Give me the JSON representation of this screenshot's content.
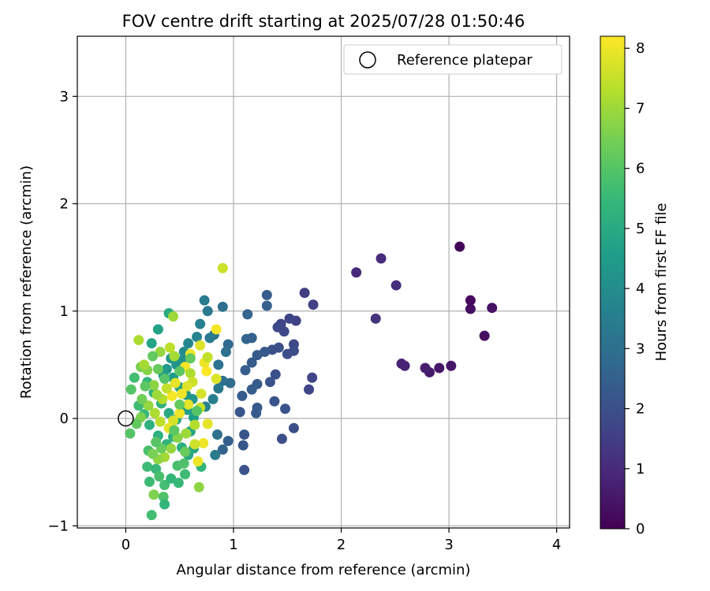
{
  "chart_data": {
    "type": "scatter",
    "title": "FOV centre drift starting at 2025/07/28 01:50:46",
    "xlabel": "Angular distance from reference (arcmin)",
    "ylabel": "Rotation from reference (arcmin)",
    "xlim": [
      -0.45,
      4.12
    ],
    "ylim": [
      -1.02,
      3.56
    ],
    "xticks": [
      0,
      1,
      2,
      3,
      4
    ],
    "yticks": [
      -1,
      0,
      1,
      2,
      3
    ],
    "xtick_labels": [
      "0",
      "1",
      "2",
      "3",
      "4"
    ],
    "ytick_labels": [
      "−1",
      "0",
      "1",
      "2",
      "3"
    ],
    "grid": true,
    "legend": {
      "position": "top-right",
      "entries": [
        {
          "label": "Reference platepar",
          "marker": "open-circle"
        }
      ]
    },
    "reference_point": {
      "x": 0,
      "y": 0
    },
    "colorbar": {
      "label": "Hours from first FF file",
      "colormap": "viridis",
      "range": [
        0,
        8.2
      ],
      "ticks": [
        0,
        1,
        2,
        3,
        4,
        5,
        6,
        7,
        8
      ],
      "tick_labels": [
        "0",
        "1",
        "2",
        "3",
        "4",
        "5",
        "6",
        "7",
        "8"
      ]
    },
    "points": [
      {
        "x": 3.1,
        "y": 1.6,
        "c": 0.1
      },
      {
        "x": 3.2,
        "y": 1.1,
        "c": 0.2
      },
      {
        "x": 3.2,
        "y": 1.02,
        "c": 0.3
      },
      {
        "x": 3.4,
        "y": 1.03,
        "c": 0.4
      },
      {
        "x": 3.33,
        "y": 0.77,
        "c": 0.3
      },
      {
        "x": 3.02,
        "y": 0.49,
        "c": 0.5
      },
      {
        "x": 2.91,
        "y": 0.47,
        "c": 0.5
      },
      {
        "x": 2.82,
        "y": 0.43,
        "c": 0.6
      },
      {
        "x": 2.78,
        "y": 0.47,
        "c": 0.7
      },
      {
        "x": 2.56,
        "y": 0.51,
        "c": 0.8
      },
      {
        "x": 2.59,
        "y": 0.49,
        "c": 0.8
      },
      {
        "x": 2.14,
        "y": 1.36,
        "c": 0.9
      },
      {
        "x": 2.37,
        "y": 1.49,
        "c": 1.0
      },
      {
        "x": 2.51,
        "y": 1.24,
        "c": 1.1
      },
      {
        "x": 2.32,
        "y": 0.93,
        "c": 1.2
      },
      {
        "x": 1.66,
        "y": 1.17,
        "c": 1.5
      },
      {
        "x": 1.74,
        "y": 1.06,
        "c": 1.6
      },
      {
        "x": 1.58,
        "y": 0.91,
        "c": 1.6
      },
      {
        "x": 1.52,
        "y": 0.93,
        "c": 1.7
      },
      {
        "x": 1.44,
        "y": 0.88,
        "c": 1.7
      },
      {
        "x": 1.47,
        "y": 0.81,
        "c": 1.8
      },
      {
        "x": 1.41,
        "y": 0.85,
        "c": 1.8
      },
      {
        "x": 1.56,
        "y": 0.69,
        "c": 1.8
      },
      {
        "x": 1.56,
        "y": 0.63,
        "c": 1.9
      },
      {
        "x": 1.5,
        "y": 0.6,
        "c": 1.9
      },
      {
        "x": 1.42,
        "y": 0.66,
        "c": 2.0
      },
      {
        "x": 1.36,
        "y": 0.64,
        "c": 2.0
      },
      {
        "x": 1.73,
        "y": 0.38,
        "c": 1.7
      },
      {
        "x": 1.7,
        "y": 0.27,
        "c": 1.7
      },
      {
        "x": 1.39,
        "y": 0.41,
        "c": 2.0
      },
      {
        "x": 1.34,
        "y": 0.34,
        "c": 2.1
      },
      {
        "x": 1.38,
        "y": 0.16,
        "c": 2.1
      },
      {
        "x": 1.48,
        "y": 0.09,
        "c": 2.1
      },
      {
        "x": 1.56,
        "y": -0.09,
        "c": 2.0
      },
      {
        "x": 1.45,
        "y": -0.19,
        "c": 2.0
      },
      {
        "x": 1.31,
        "y": 1.15,
        "c": 2.4
      },
      {
        "x": 1.31,
        "y": 1.05,
        "c": 2.5
      },
      {
        "x": 1.13,
        "y": 0.97,
        "c": 2.6
      },
      {
        "x": 1.17,
        "y": 0.75,
        "c": 2.5
      },
      {
        "x": 1.12,
        "y": 0.74,
        "c": 2.6
      },
      {
        "x": 1.22,
        "y": 0.59,
        "c": 2.3
      },
      {
        "x": 1.29,
        "y": 0.62,
        "c": 2.3
      },
      {
        "x": 1.17,
        "y": 0.52,
        "c": 2.3
      },
      {
        "x": 1.11,
        "y": 0.45,
        "c": 2.4
      },
      {
        "x": 1.22,
        "y": 0.32,
        "c": 2.3
      },
      {
        "x": 1.17,
        "y": 0.27,
        "c": 2.4
      },
      {
        "x": 1.08,
        "y": 0.21,
        "c": 2.4
      },
      {
        "x": 1.22,
        "y": 0.1,
        "c": 2.3
      },
      {
        "x": 1.21,
        "y": 0.05,
        "c": 2.3
      },
      {
        "x": 1.06,
        "y": 0.06,
        "c": 2.2
      },
      {
        "x": 1.1,
        "y": -0.15,
        "c": 2.2
      },
      {
        "x": 1.09,
        "y": -0.25,
        "c": 2.2
      },
      {
        "x": 1.1,
        "y": -0.48,
        "c": 2.1
      },
      {
        "x": 0.95,
        "y": -0.21,
        "c": 2.5
      },
      {
        "x": 0.9,
        "y": -0.29,
        "c": 2.6
      },
      {
        "x": 0.85,
        "y": -0.15,
        "c": 3.0
      },
      {
        "x": 0.83,
        "y": -0.34,
        "c": 3.4
      },
      {
        "x": 0.95,
        "y": 0.69,
        "c": 2.8
      },
      {
        "x": 0.9,
        "y": 1.04,
        "c": 3.0
      },
      {
        "x": 0.76,
        "y": 1.0,
        "c": 3.3
      },
      {
        "x": 0.73,
        "y": 1.1,
        "c": 3.4
      },
      {
        "x": 0.69,
        "y": 0.88,
        "c": 3.6
      },
      {
        "x": 0.82,
        "y": 0.78,
        "c": 3.2
      },
      {
        "x": 0.78,
        "y": 0.75,
        "c": 3.4
      },
      {
        "x": 0.93,
        "y": 0.62,
        "c": 3.0
      },
      {
        "x": 0.86,
        "y": 0.5,
        "c": 3.1
      },
      {
        "x": 0.9,
        "y": 0.35,
        "c": 3.0
      },
      {
        "x": 0.97,
        "y": 0.33,
        "c": 2.9
      },
      {
        "x": 0.86,
        "y": 0.28,
        "c": 3.3
      },
      {
        "x": 0.81,
        "y": 0.18,
        "c": 3.5
      },
      {
        "x": 0.74,
        "y": 0.11,
        "c": 3.6
      },
      {
        "x": 0.66,
        "y": 0.76,
        "c": 3.7
      },
      {
        "x": 0.58,
        "y": 0.7,
        "c": 3.8
      },
      {
        "x": 0.54,
        "y": 0.62,
        "c": 4.0
      },
      {
        "x": 0.52,
        "y": 0.54,
        "c": 4.1
      },
      {
        "x": 0.47,
        "y": 0.5,
        "c": 4.2
      },
      {
        "x": 0.42,
        "y": 0.56,
        "c": 4.3
      },
      {
        "x": 0.38,
        "y": 0.46,
        "c": 4.4
      },
      {
        "x": 0.4,
        "y": 0.98,
        "c": 5.0
      },
      {
        "x": 0.3,
        "y": 0.83,
        "c": 4.7
      },
      {
        "x": 0.24,
        "y": 0.7,
        "c": 4.8
      },
      {
        "x": 0.35,
        "y": 0.4,
        "c": 4.6
      },
      {
        "x": 0.44,
        "y": 0.38,
        "c": 4.5
      },
      {
        "x": 0.5,
        "y": 0.29,
        "c": 4.6
      },
      {
        "x": 0.56,
        "y": 0.22,
        "c": 4.4
      },
      {
        "x": 0.62,
        "y": 0.18,
        "c": 4.3
      },
      {
        "x": 0.57,
        "y": 0.08,
        "c": 4.5
      },
      {
        "x": 0.63,
        "y": 0.01,
        "c": 4.6
      },
      {
        "x": 0.6,
        "y": -0.12,
        "c": 4.8
      },
      {
        "x": 0.63,
        "y": -0.28,
        "c": 4.9
      },
      {
        "x": 0.58,
        "y": -0.34,
        "c": 5.0
      },
      {
        "x": 0.52,
        "y": -0.27,
        "c": 5.1
      },
      {
        "x": 0.44,
        "y": -0.17,
        "c": 5.2
      },
      {
        "x": 0.38,
        "y": -0.24,
        "c": 5.3
      },
      {
        "x": 0.3,
        "y": -0.16,
        "c": 5.2
      },
      {
        "x": 0.22,
        "y": -0.06,
        "c": 5.2
      },
      {
        "x": 0.17,
        "y": 0.04,
        "c": 5.5
      },
      {
        "x": 0.12,
        "y": 0.12,
        "c": 5.6
      },
      {
        "x": 0.08,
        "y": 0.38,
        "c": 5.7
      },
      {
        "x": 0.05,
        "y": 0.27,
        "c": 6.0
      },
      {
        "x": 0.04,
        "y": -0.14,
        "c": 6.0
      },
      {
        "x": 0.14,
        "y": 0.48,
        "c": 6.5
      },
      {
        "x": 0.2,
        "y": 0.34,
        "c": 5.4
      },
      {
        "x": 0.26,
        "y": 0.24,
        "c": 5.3
      },
      {
        "x": 0.33,
        "y": 0.14,
        "c": 5.2
      },
      {
        "x": 0.4,
        "y": 0.05,
        "c": 5.0
      },
      {
        "x": 0.47,
        "y": -0.01,
        "c": 5.0
      },
      {
        "x": 0.21,
        "y": -0.3,
        "c": 5.8
      },
      {
        "x": 0.2,
        "y": -0.45,
        "c": 5.6
      },
      {
        "x": 0.22,
        "y": -0.59,
        "c": 5.6
      },
      {
        "x": 0.28,
        "y": -0.47,
        "c": 5.5
      },
      {
        "x": 0.31,
        "y": -0.54,
        "c": 5.8
      },
      {
        "x": 0.36,
        "y": -0.62,
        "c": 5.7
      },
      {
        "x": 0.35,
        "y": -0.73,
        "c": 5.9
      },
      {
        "x": 0.36,
        "y": -0.8,
        "c": 5.4
      },
      {
        "x": 0.24,
        "y": -0.9,
        "c": 5.7
      },
      {
        "x": 0.26,
        "y": -0.71,
        "c": 6.6
      },
      {
        "x": 0.42,
        "y": -0.56,
        "c": 5.4
      },
      {
        "x": 0.49,
        "y": -0.6,
        "c": 5.5
      },
      {
        "x": 0.55,
        "y": -0.52,
        "c": 5.6
      },
      {
        "x": 0.48,
        "y": -0.44,
        "c": 5.8
      },
      {
        "x": 0.54,
        "y": -0.42,
        "c": 5.9
      },
      {
        "x": 0.7,
        "y": -0.45,
        "c": 5.4
      },
      {
        "x": 0.68,
        "y": -0.64,
        "c": 6.8
      },
      {
        "x": 0.67,
        "y": -0.4,
        "c": 8.0
      },
      {
        "x": 0.72,
        "y": -0.23,
        "c": 8.0
      },
      {
        "x": 0.64,
        "y": -0.24,
        "c": 7.6
      },
      {
        "x": 0.76,
        "y": -0.05,
        "c": 7.9
      },
      {
        "x": 0.44,
        "y": 0.95,
        "c": 7.0
      },
      {
        "x": 0.9,
        "y": 1.4,
        "c": 7.6
      },
      {
        "x": 0.84,
        "y": 0.83,
        "c": 8.1
      },
      {
        "x": 0.84,
        "y": 0.37,
        "c": 7.8
      },
      {
        "x": 0.75,
        "y": 0.44,
        "c": 8.2
      },
      {
        "x": 0.73,
        "y": 0.52,
        "c": 8.0
      },
      {
        "x": 0.76,
        "y": 0.57,
        "c": 7.5
      },
      {
        "x": 0.69,
        "y": 0.68,
        "c": 7.8
      },
      {
        "x": 0.6,
        "y": 0.6,
        "c": 8.0
      },
      {
        "x": 0.55,
        "y": 0.48,
        "c": 8.1
      },
      {
        "x": 0.6,
        "y": 0.42,
        "c": 7.2
      },
      {
        "x": 0.62,
        "y": 0.34,
        "c": 7.6
      },
      {
        "x": 0.57,
        "y": 0.3,
        "c": 7.8
      },
      {
        "x": 0.52,
        "y": 0.23,
        "c": 8.0
      },
      {
        "x": 0.46,
        "y": 0.33,
        "c": 7.9
      },
      {
        "x": 0.43,
        "y": 0.21,
        "c": 8.1
      },
      {
        "x": 0.38,
        "y": 0.28,
        "c": 7.5
      },
      {
        "x": 0.34,
        "y": 0.18,
        "c": 7.3
      },
      {
        "x": 0.29,
        "y": 0.22,
        "c": 7.0
      },
      {
        "x": 0.26,
        "y": 0.31,
        "c": 6.8
      },
      {
        "x": 0.2,
        "y": 0.45,
        "c": 6.7
      },
      {
        "x": 0.17,
        "y": 0.5,
        "c": 7.1
      },
      {
        "x": 0.12,
        "y": 0.73,
        "c": 7.2
      },
      {
        "x": 0.41,
        "y": 0.66,
        "c": 7.4
      },
      {
        "x": 0.45,
        "y": 0.58,
        "c": 7.1
      },
      {
        "x": 0.32,
        "y": 0.62,
        "c": 6.9
      },
      {
        "x": 0.7,
        "y": 0.23,
        "c": 7.7
      },
      {
        "x": 0.69,
        "y": 0.1,
        "c": 7.5
      },
      {
        "x": 0.58,
        "y": 0.13,
        "c": 7.9
      },
      {
        "x": 0.5,
        "y": 0.05,
        "c": 8.0
      },
      {
        "x": 0.44,
        "y": -0.02,
        "c": 7.7
      },
      {
        "x": 0.4,
        "y": -0.09,
        "c": 7.9
      },
      {
        "x": 0.32,
        "y": -0.03,
        "c": 7.4
      },
      {
        "x": 0.27,
        "y": 0.05,
        "c": 7.2
      },
      {
        "x": 0.21,
        "y": 0.12,
        "c": 6.9
      },
      {
        "x": 0.14,
        "y": 0.01,
        "c": 6.6
      },
      {
        "x": 0.1,
        "y": -0.05,
        "c": 6.2
      },
      {
        "x": 0.64,
        "y": -0.06,
        "c": 7.3
      },
      {
        "x": 0.56,
        "y": -0.14,
        "c": 7.0
      },
      {
        "x": 0.48,
        "y": -0.18,
        "c": 6.7
      },
      {
        "x": 0.42,
        "y": -0.28,
        "c": 6.9
      },
      {
        "x": 0.36,
        "y": -0.36,
        "c": 7.1
      },
      {
        "x": 0.3,
        "y": -0.38,
        "c": 6.8
      },
      {
        "x": 0.25,
        "y": -0.33,
        "c": 6.5
      },
      {
        "x": 0.55,
        "y": -0.31,
        "c": 6.3
      },
      {
        "x": 0.6,
        "y": 0.56,
        "c": 6.2
      },
      {
        "x": 0.5,
        "y": 0.44,
        "c": 6.1
      },
      {
        "x": 0.36,
        "y": 0.37,
        "c": 6.0
      },
      {
        "x": 0.3,
        "y": 0.46,
        "c": 6.3
      },
      {
        "x": 0.25,
        "y": 0.58,
        "c": 6.2
      },
      {
        "x": 0.18,
        "y": 0.3,
        "c": 6.1
      },
      {
        "x": 0.15,
        "y": 0.18,
        "c": 6.4
      },
      {
        "x": 0.5,
        "y": 0.13,
        "c": 6.2
      },
      {
        "x": 0.66,
        "y": 0.07,
        "c": 6.0
      },
      {
        "x": 0.45,
        "y": -0.11,
        "c": 6.1
      },
      {
        "x": 0.33,
        "y": -0.28,
        "c": 6.3
      },
      {
        "x": 0.28,
        "y": -0.22,
        "c": 6.0
      }
    ]
  }
}
